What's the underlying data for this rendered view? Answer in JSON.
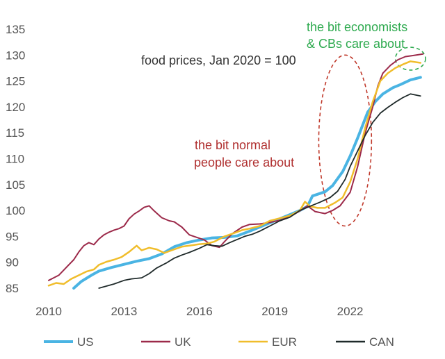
{
  "chart_data": {
    "type": "line",
    "annotation_title": "food prices, Jan 2020 = 100",
    "xlabel": "",
    "ylabel": "",
    "xlim": [
      2010,
      2025
    ],
    "ylim": [
      84,
      136
    ],
    "x_ticks": [
      2010,
      2013,
      2016,
      2019,
      2022
    ],
    "y_ticks": [
      85,
      90,
      95,
      100,
      105,
      110,
      115,
      120,
      125,
      130,
      135
    ],
    "grid": false,
    "legend_position": "bottom",
    "annotations": [
      {
        "id": "normal",
        "lines": [
          "the bit normal",
          "people care about"
        ],
        "color": "#b03030"
      },
      {
        "id": "economists",
        "lines": [
          "the bit economists",
          "& CBs care about"
        ],
        "color": "#2eaa4f"
      }
    ],
    "highlight_ellipses": [
      {
        "id": "normal",
        "cx": 2021.8,
        "cy": 113.5,
        "rx": 1.05,
        "ry": 16.5,
        "color": "#c0392b"
      },
      {
        "id": "economists",
        "cx": 2024.4,
        "cy": 129.3,
        "rx": 0.6,
        "ry": 2.2,
        "color": "#2eaa4f"
      }
    ],
    "series": [
      {
        "name": "US",
        "color": "#4ab4e3",
        "width": 4,
        "points": [
          [
            2011,
            85
          ],
          [
            2011.3,
            86.3
          ],
          [
            2011.7,
            87.5
          ],
          [
            2012,
            88.3
          ],
          [
            2012.5,
            89
          ],
          [
            2013,
            89.6
          ],
          [
            2013.5,
            90.2
          ],
          [
            2014,
            90.7
          ],
          [
            2014.5,
            91.6
          ],
          [
            2015,
            93
          ],
          [
            2015.5,
            93.8
          ],
          [
            2016,
            94.3
          ],
          [
            2016.5,
            94.7
          ],
          [
            2017,
            94.8
          ],
          [
            2017.5,
            95.1
          ],
          [
            2018,
            96
          ],
          [
            2018.5,
            97
          ],
          [
            2019,
            98
          ],
          [
            2019.5,
            99
          ],
          [
            2020,
            100
          ],
          [
            2020.3,
            100.8
          ],
          [
            2020.5,
            102.8
          ],
          [
            2021,
            103.6
          ],
          [
            2021.3,
            104.8
          ],
          [
            2021.7,
            107.5
          ],
          [
            2022,
            110.5
          ],
          [
            2022.3,
            114
          ],
          [
            2022.7,
            119
          ],
          [
            2023,
            121
          ],
          [
            2023.3,
            122.5
          ],
          [
            2023.7,
            123.7
          ],
          [
            2024,
            124.3
          ],
          [
            2024.4,
            125.2
          ],
          [
            2024.8,
            125.7
          ]
        ]
      },
      {
        "name": "UK",
        "color": "#9c2a4a",
        "width": 2,
        "points": [
          [
            2010,
            86.5
          ],
          [
            2010.2,
            87
          ],
          [
            2010.4,
            87.5
          ],
          [
            2010.6,
            88.5
          ],
          [
            2010.8,
            89.5
          ],
          [
            2011,
            90.5
          ],
          [
            2011.2,
            92
          ],
          [
            2011.4,
            93.2
          ],
          [
            2011.6,
            93.8
          ],
          [
            2011.8,
            93.4
          ],
          [
            2012,
            94.5
          ],
          [
            2012.2,
            95.3
          ],
          [
            2012.4,
            95.8
          ],
          [
            2012.6,
            96.2
          ],
          [
            2012.8,
            96.5
          ],
          [
            2013,
            97
          ],
          [
            2013.2,
            98.4
          ],
          [
            2013.4,
            99.3
          ],
          [
            2013.6,
            99.9
          ],
          [
            2013.8,
            100.6
          ],
          [
            2014,
            100.9
          ],
          [
            2014.2,
            99.9
          ],
          [
            2014.5,
            98.6
          ],
          [
            2014.8,
            98
          ],
          [
            2015,
            97.8
          ],
          [
            2015.3,
            96.8
          ],
          [
            2015.6,
            95.3
          ],
          [
            2015.9,
            94.8
          ],
          [
            2016.2,
            94.3
          ],
          [
            2016.5,
            93.2
          ],
          [
            2016.8,
            92.9
          ],
          [
            2017,
            94
          ],
          [
            2017.3,
            95.5
          ],
          [
            2017.7,
            96.8
          ],
          [
            2018,
            97.3
          ],
          [
            2018.4,
            97.4
          ],
          [
            2018.8,
            97.7
          ],
          [
            2019.2,
            98.1
          ],
          [
            2019.6,
            98.8
          ],
          [
            2020,
            99.9
          ],
          [
            2020.3,
            100.9
          ],
          [
            2020.6,
            99.8
          ],
          [
            2021,
            99.4
          ],
          [
            2021.3,
            100
          ],
          [
            2021.6,
            100.9
          ],
          [
            2022,
            103.5
          ],
          [
            2022.3,
            108.5
          ],
          [
            2022.6,
            115
          ],
          [
            2022.9,
            120
          ],
          [
            2023.1,
            124
          ],
          [
            2023.3,
            126.5
          ],
          [
            2023.6,
            128
          ],
          [
            2023.9,
            129.1
          ],
          [
            2024.2,
            129.7
          ],
          [
            2024.5,
            129.9
          ],
          [
            2024.9,
            130.2
          ]
        ]
      },
      {
        "name": "EUR",
        "color": "#f0bd2b",
        "width": 2.5,
        "points": [
          [
            2010,
            85.5
          ],
          [
            2010.3,
            86
          ],
          [
            2010.6,
            85.8
          ],
          [
            2010.9,
            86.8
          ],
          [
            2011.2,
            87.5
          ],
          [
            2011.5,
            88.2
          ],
          [
            2011.8,
            88.6
          ],
          [
            2012,
            89.5
          ],
          [
            2012.3,
            90.1
          ],
          [
            2012.6,
            90.5
          ],
          [
            2012.9,
            91
          ],
          [
            2013.2,
            92
          ],
          [
            2013.5,
            93.2
          ],
          [
            2013.7,
            92.3
          ],
          [
            2014,
            92.8
          ],
          [
            2014.3,
            92.5
          ],
          [
            2014.6,
            91.8
          ],
          [
            2015,
            92.5
          ],
          [
            2015.3,
            93
          ],
          [
            2015.6,
            93.2
          ],
          [
            2016,
            93.5
          ],
          [
            2016.3,
            93.6
          ],
          [
            2016.6,
            94
          ],
          [
            2017,
            95
          ],
          [
            2017.3,
            95.5
          ],
          [
            2017.7,
            96.2
          ],
          [
            2018,
            96.5
          ],
          [
            2018.4,
            97
          ],
          [
            2018.8,
            98
          ],
          [
            2019.2,
            98.5
          ],
          [
            2019.6,
            99
          ],
          [
            2020,
            100
          ],
          [
            2020.2,
            101.7
          ],
          [
            2020.4,
            100.8
          ],
          [
            2020.7,
            100.5
          ],
          [
            2021,
            100.5
          ],
          [
            2021.4,
            101.5
          ],
          [
            2021.7,
            102.5
          ],
          [
            2022,
            105.5
          ],
          [
            2022.3,
            110
          ],
          [
            2022.6,
            116
          ],
          [
            2022.9,
            121
          ],
          [
            2023.2,
            125
          ],
          [
            2023.5,
            126.5
          ],
          [
            2023.8,
            127.5
          ],
          [
            2024.1,
            128.2
          ],
          [
            2024.4,
            128.8
          ],
          [
            2024.8,
            128.5
          ]
        ]
      },
      {
        "name": "CAN",
        "color": "#1f2a2a",
        "width": 1.8,
        "points": [
          [
            2012,
            85
          ],
          [
            2012.3,
            85.4
          ],
          [
            2012.6,
            85.8
          ],
          [
            2013,
            86.5
          ],
          [
            2013.3,
            86.8
          ],
          [
            2013.7,
            87
          ],
          [
            2014,
            87.8
          ],
          [
            2014.3,
            88.9
          ],
          [
            2014.7,
            89.9
          ],
          [
            2015,
            90.8
          ],
          [
            2015.3,
            91.4
          ],
          [
            2015.6,
            91.9
          ],
          [
            2016,
            92.7
          ],
          [
            2016.3,
            93.4
          ],
          [
            2016.6,
            93.2
          ],
          [
            2016.9,
            93.1
          ],
          [
            2017.2,
            93.8
          ],
          [
            2017.5,
            94.4
          ],
          [
            2017.8,
            95
          ],
          [
            2018.1,
            95.4
          ],
          [
            2018.4,
            96
          ],
          [
            2018.8,
            97
          ],
          [
            2019.2,
            98
          ],
          [
            2019.6,
            98.7
          ],
          [
            2020,
            100
          ],
          [
            2020.4,
            100.8
          ],
          [
            2020.8,
            101.6
          ],
          [
            2021.2,
            102.5
          ],
          [
            2021.5,
            103.7
          ],
          [
            2021.8,
            106
          ],
          [
            2022,
            108.5
          ],
          [
            2022.3,
            111.5
          ],
          [
            2022.6,
            114.5
          ],
          [
            2022.9,
            117
          ],
          [
            2023.2,
            118.8
          ],
          [
            2023.5,
            119.9
          ],
          [
            2023.8,
            120.9
          ],
          [
            2024.1,
            121.8
          ],
          [
            2024.4,
            122.5
          ],
          [
            2024.8,
            122.1
          ]
        ]
      }
    ]
  }
}
